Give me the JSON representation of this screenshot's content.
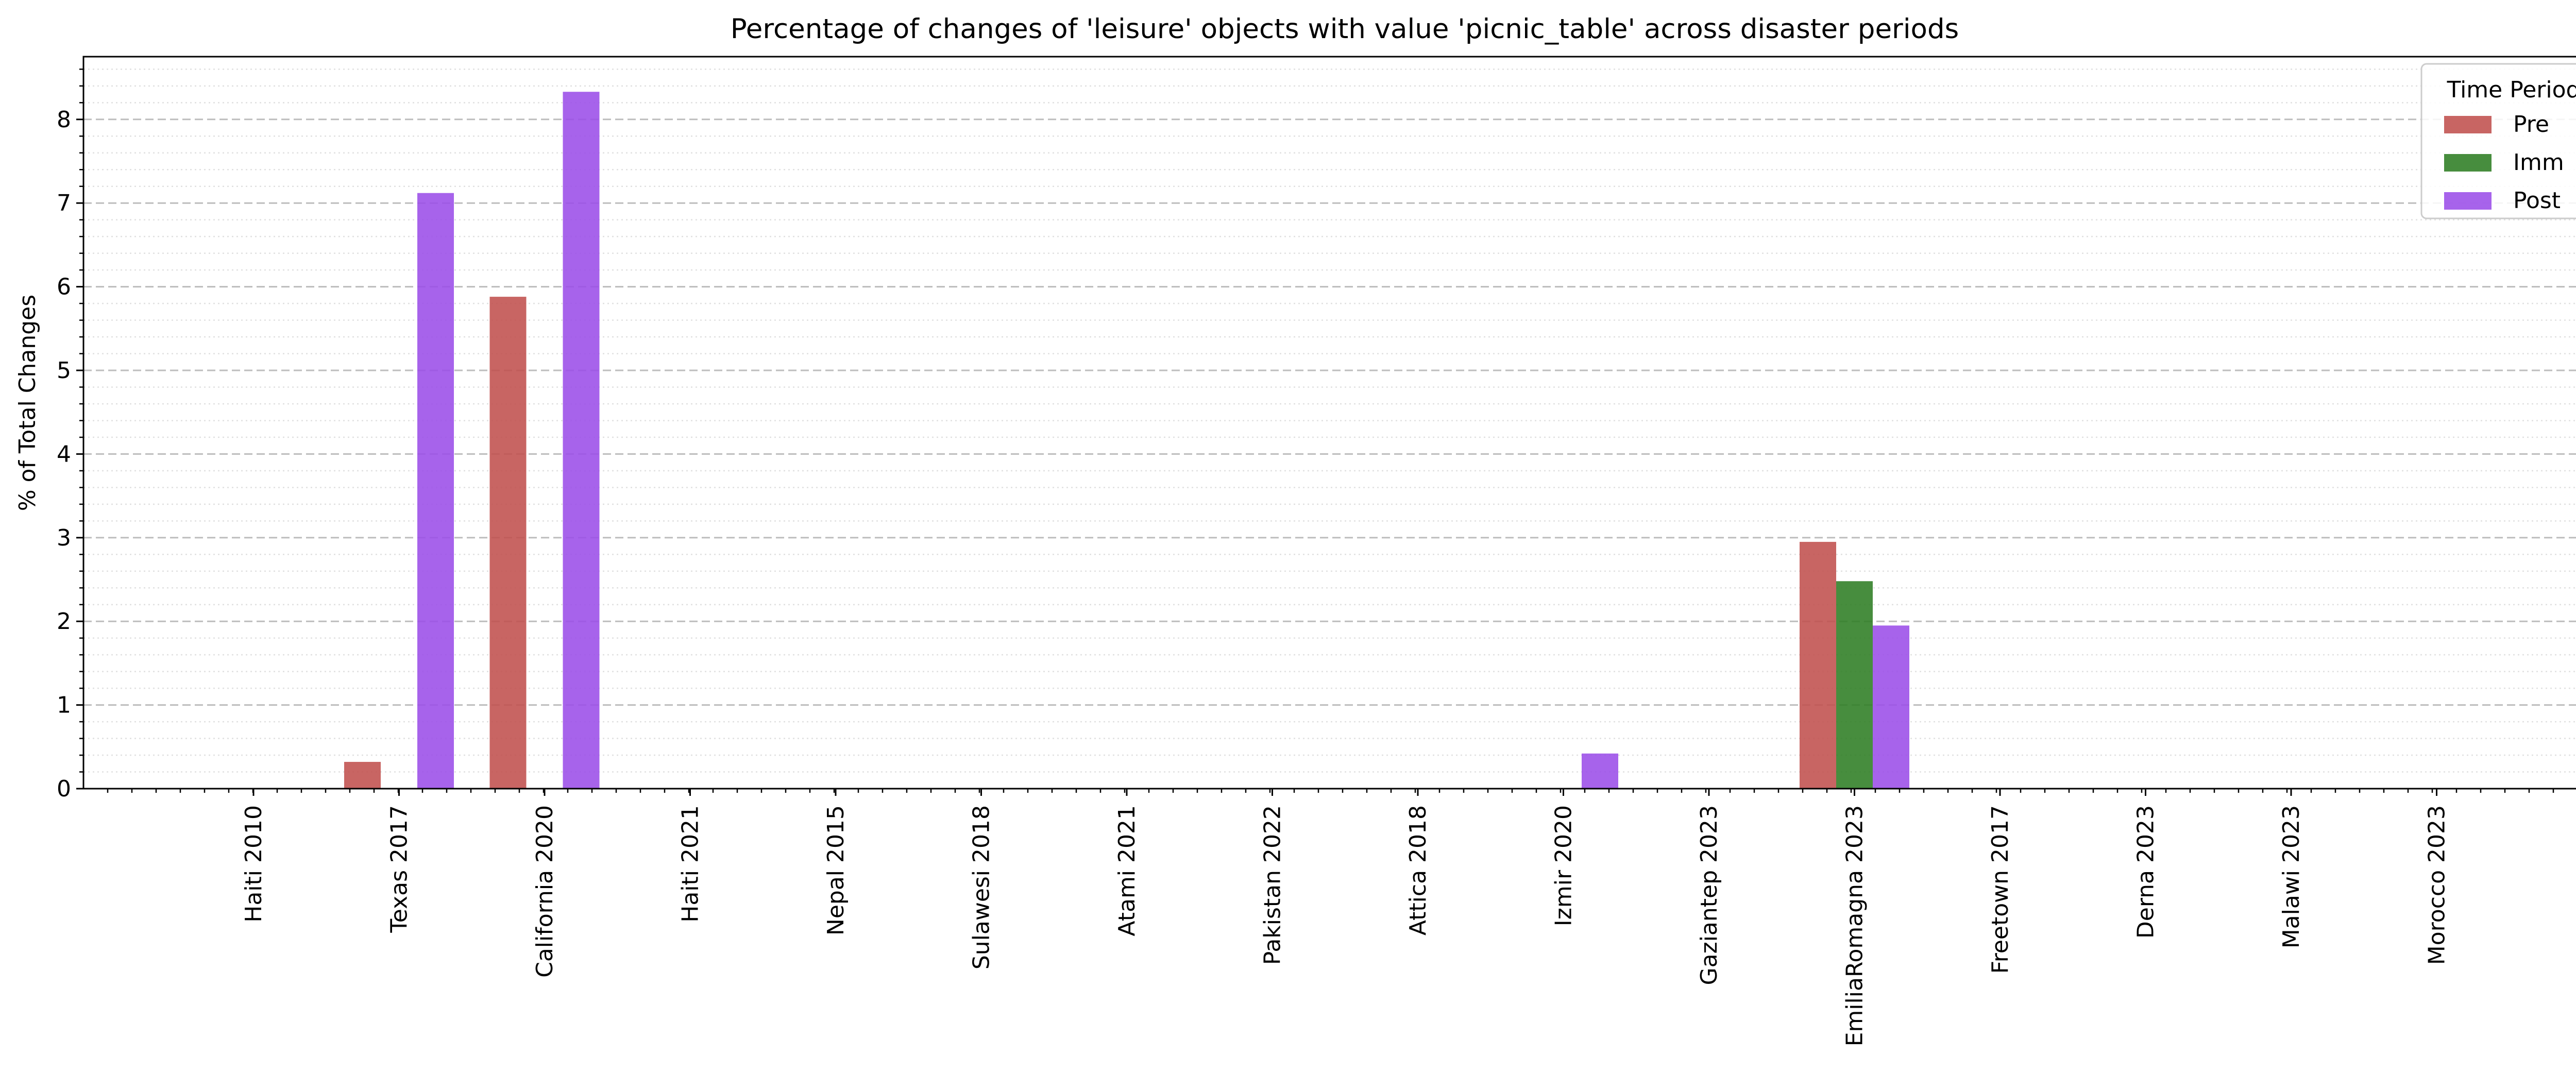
{
  "chart_data": {
    "type": "bar",
    "title": "Percentage of changes of 'leisure' objects with value 'picnic_table' across disaster periods",
    "xlabel": "",
    "ylabel": "% of Total Changes",
    "ylim": [
      0,
      8.75
    ],
    "yticks": [
      "0",
      "1",
      "2",
      "3",
      "4",
      "5",
      "6",
      "7",
      "8"
    ],
    "grid": "y-major dashed, y-minor dotted",
    "legend": {
      "title": "Time Period",
      "placement": "top-right"
    },
    "categories": [
      "Haiti 2010",
      "Texas 2017",
      "California 2020",
      "Haiti 2021",
      "Nepal 2015",
      "Sulawesi 2018",
      "Atami 2021",
      "Pakistan 2022",
      "Attica 2018",
      "Izmir 2020",
      "Gaziantep 2023",
      "EmiliaRomagna 2023",
      "Freetown 2017",
      "Derna 2023",
      "Malawi 2023",
      "Morocco 2023"
    ],
    "series": [
      {
        "name": "Pre",
        "color": "#c0504d",
        "values": [
          0,
          0.32,
          5.88,
          0,
          0,
          0,
          0,
          0,
          0,
          0,
          0,
          2.95,
          0,
          0,
          0,
          0
        ]
      },
      {
        "name": "Imm",
        "color": "#2e7d23",
        "values": [
          0,
          0,
          0,
          0,
          0,
          0,
          0,
          0,
          0,
          0,
          0,
          2.48,
          0,
          0,
          0,
          0
        ]
      },
      {
        "name": "Post",
        "color": "#9b4de8",
        "values": [
          0,
          7.12,
          8.33,
          0,
          0,
          0,
          0,
          0,
          0,
          0.42,
          0,
          1.95,
          0,
          0,
          0,
          0
        ]
      }
    ]
  }
}
